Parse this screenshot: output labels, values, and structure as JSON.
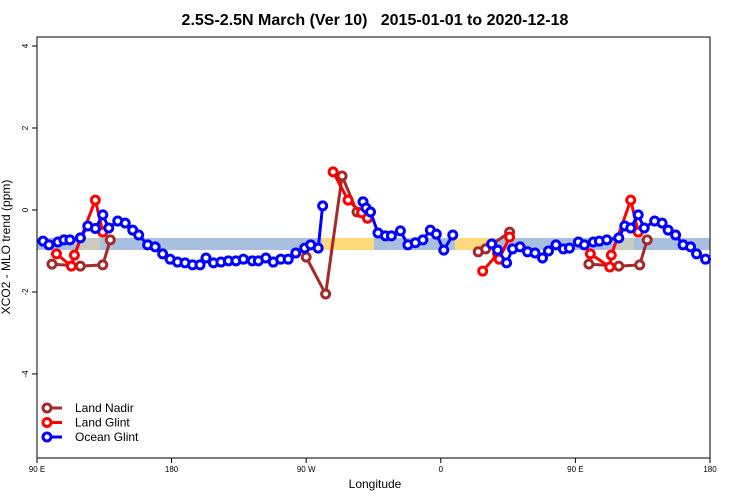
{
  "chart_data": {
    "type": "line",
    "title": "2.5S-2.5N March (Ver 10)   2015-01-01 to 2020-12-18",
    "xlabel": "Longitude",
    "ylabel": "XCO2 - MLO trend (ppm)",
    "xlim": [
      90,
      540
    ],
    "ylim": [
      -6.05,
      4.22
    ],
    "xticks": [
      {
        "value": 90,
        "label": "90 E"
      },
      180,
      {
        "value": 270,
        "label": "90 W"
      },
      {
        "value": 360,
        "label": "0"
      },
      {
        "value": 450,
        "label": "90 E"
      },
      {
        "value": 540,
        "label": "180"
      }
    ],
    "yticks": [
      4,
      2,
      0,
      -2,
      -4
    ],
    "legend": "bottom-left",
    "series": [
      {
        "name": "Land Nadir",
        "color": "#a52a2a",
        "x": [
          100,
          119,
          134,
          139,
          null,
          270,
          283,
          294,
          304,
          null,
          385,
          390,
          406,
          null,
          459,
          479,
          493,
          498
        ],
        "values": [
          -1.32,
          -1.37,
          -1.34,
          -0.73,
          null,
          -1.15,
          -2.05,
          0.83,
          -0.05,
          null,
          -1.02,
          -0.95,
          -0.54,
          null,
          -1.32,
          -1.37,
          -1.34,
          -0.73
        ]
      },
      {
        "name": "Land Glint",
        "color": "#ff0000",
        "x": [
          103,
          113,
          115,
          129,
          134,
          null,
          288,
          298,
          307,
          311,
          null,
          388,
          398,
          399,
          406,
          null,
          460,
          473,
          474,
          487,
          492
        ],
        "values": [
          -1.07,
          -1.37,
          -1.1,
          0.24,
          -0.54,
          null,
          0.93,
          0.24,
          -0.07,
          -0.2,
          null,
          -1.49,
          -1.07,
          -1.2,
          -0.66,
          null,
          -1.07,
          -1.39,
          -1.1,
          0.24,
          -0.54
        ]
      },
      {
        "name": "Ocean Glint",
        "color": "#0000ff",
        "x": [
          94,
          98,
          104,
          108,
          112,
          119,
          124,
          129,
          134,
          138,
          144,
          149,
          154,
          158,
          164,
          169,
          174,
          179,
          184,
          189,
          194,
          199,
          203,
          208,
          213,
          218,
          223,
          228,
          234,
          238,
          243,
          248,
          253,
          258,
          263,
          269,
          273,
          278,
          281,
          null,
          308,
          310,
          313,
          318,
          323,
          327,
          333,
          338,
          343,
          348,
          353,
          357,
          362,
          368,
          null,
          394,
          398,
          404,
          408,
          413,
          418,
          423,
          428,
          432,
          437,
          442,
          446,
          452,
          456,
          462,
          466,
          471,
          479,
          483,
          487,
          492,
          496,
          503,
          508,
          512,
          517,
          522,
          527,
          531,
          537
        ],
        "values": [
          -0.76,
          -0.85,
          -0.78,
          -0.73,
          -0.73,
          -0.68,
          -0.39,
          -0.45,
          -0.12,
          -0.44,
          -0.27,
          -0.32,
          -0.49,
          -0.61,
          -0.85,
          -0.9,
          -1.07,
          -1.2,
          -1.27,
          -1.29,
          -1.34,
          -1.34,
          -1.17,
          -1.29,
          -1.27,
          -1.24,
          -1.24,
          -1.2,
          -1.24,
          -1.24,
          -1.17,
          -1.27,
          -1.2,
          -1.2,
          -1.05,
          -0.93,
          -0.85,
          -0.93,
          0.1,
          null,
          0.2,
          0.05,
          -0.05,
          -0.56,
          -0.63,
          -0.63,
          -0.51,
          -0.85,
          -0.8,
          -0.73,
          -0.49,
          -0.59,
          -0.98,
          -0.61,
          null,
          -0.83,
          -0.98,
          -1.29,
          -0.95,
          -0.9,
          -1.02,
          -1.05,
          -1.17,
          -1.0,
          -0.85,
          -0.95,
          -0.93,
          -0.78,
          -0.85,
          -0.78,
          -0.76,
          -0.73,
          -0.68,
          -0.39,
          -0.44,
          -0.12,
          -0.44,
          -0.27,
          -0.32,
          -0.49,
          -0.61,
          -0.85,
          -0.9,
          -1.07,
          -1.2
        ]
      }
    ]
  }
}
